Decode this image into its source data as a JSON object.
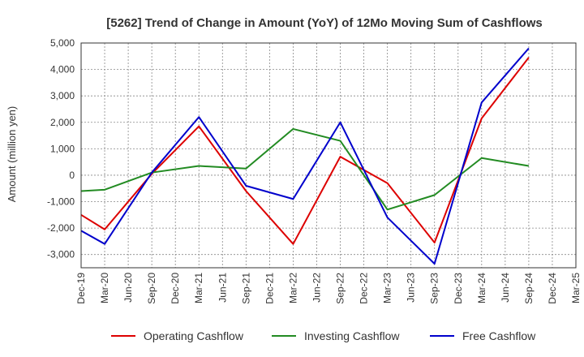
{
  "chart_data": {
    "type": "line",
    "title": "[5262]  Trend of Change in Amount (YoY) of 12Mo Moving Sum of Cashflows",
    "xlabel": "",
    "ylabel": "Amount (million yen)",
    "ylim": [
      -3500,
      5000
    ],
    "yticks": [
      5000,
      4000,
      3000,
      2000,
      1000,
      0,
      -1000,
      -2000,
      -3000
    ],
    "ytick_labels": [
      "5,000",
      "4,000",
      "3,000",
      "2,000",
      "1,000",
      "0",
      "-1,000",
      "-2,000",
      "-3,000"
    ],
    "categories": [
      "Dec-19",
      "Mar-20",
      "Jun-20",
      "Sep-20",
      "Dec-20",
      "Mar-21",
      "Jun-21",
      "Sep-21",
      "Dec-21",
      "Mar-22",
      "Jun-22",
      "Sep-22",
      "Dec-22",
      "Mar-23",
      "Jun-23",
      "Sep-23",
      "Dec-23",
      "Mar-24",
      "Jun-24",
      "Sep-24",
      "Dec-24",
      "Mar-25"
    ],
    "grid": true,
    "legend_position": "bottom",
    "series": [
      {
        "name": "Operating Cashflow",
        "color": "#dd0000",
        "points": [
          [
            "Dec-19",
            -1500
          ],
          [
            "Mar-20",
            -2050
          ],
          [
            "Sep-20",
            50
          ],
          [
            "Mar-21",
            1850
          ],
          [
            "Sep-21",
            -600
          ],
          [
            "Mar-22",
            -2600
          ],
          [
            "Sep-22",
            700
          ],
          [
            "Mar-23",
            -300
          ],
          [
            "Sep-23",
            -2550
          ],
          [
            "Mar-24",
            2150
          ],
          [
            "Sep-24",
            4450
          ]
        ]
      },
      {
        "name": "Investing Cashflow",
        "color": "#228b22",
        "points": [
          [
            "Dec-19",
            -600
          ],
          [
            "Mar-20",
            -550
          ],
          [
            "Sep-20",
            100
          ],
          [
            "Mar-21",
            350
          ],
          [
            "Sep-21",
            250
          ],
          [
            "Mar-22",
            1750
          ],
          [
            "Sep-22",
            1300
          ],
          [
            "Mar-23",
            -1300
          ],
          [
            "Sep-23",
            -750
          ],
          [
            "Mar-24",
            650
          ],
          [
            "Sep-24",
            350
          ]
        ]
      },
      {
        "name": "Free Cashflow",
        "color": "#0000cc",
        "points": [
          [
            "Dec-19",
            -2100
          ],
          [
            "Mar-20",
            -2600
          ],
          [
            "Sep-20",
            100
          ],
          [
            "Mar-21",
            2200
          ],
          [
            "Sep-21",
            -400
          ],
          [
            "Mar-22",
            -900
          ],
          [
            "Sep-22",
            2000
          ],
          [
            "Mar-23",
            -1600
          ],
          [
            "Sep-23",
            -3350
          ],
          [
            "Mar-24",
            2750
          ],
          [
            "Sep-24",
            4800
          ]
        ]
      }
    ]
  }
}
